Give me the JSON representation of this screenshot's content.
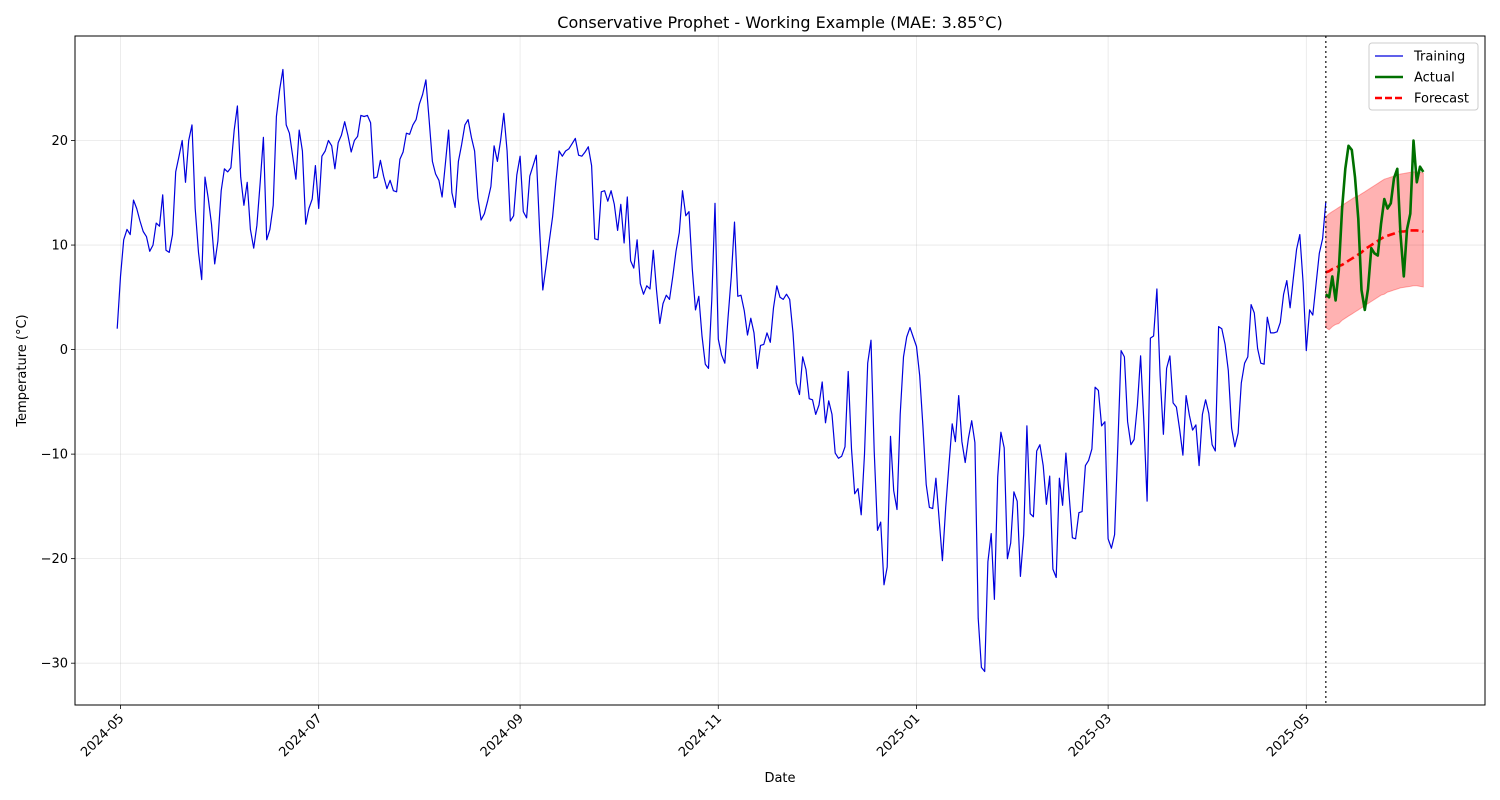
{
  "chart_data": {
    "type": "line",
    "title": "Conservative Prophet - Working Example (MAE: 3.85°C)",
    "xlabel": "Date",
    "ylabel": "Temperature (°C)",
    "ylim": [
      -34,
      30
    ],
    "y_ticks": [
      -30,
      -20,
      -10,
      0,
      10,
      20
    ],
    "y_tick_labels": [
      "−30",
      "−20",
      "−10",
      "0",
      "10",
      "20"
    ],
    "x_domain_days": [
      -14,
      420
    ],
    "x_ticks": [
      {
        "label": "2024-05",
        "day": 0
      },
      {
        "label": "2024-07",
        "day": 61
      },
      {
        "label": "2024-09",
        "day": 123
      },
      {
        "label": "2024-11",
        "day": 184
      },
      {
        "label": "2025-01",
        "day": 245
      },
      {
        "label": "2025-03",
        "day": 304
      },
      {
        "label": "2025-05",
        "day": 365
      }
    ],
    "grid": true,
    "legend_position": "top-right",
    "forecast_start_day": 371,
    "series": [
      {
        "name": "Training",
        "color": "#0000dd",
        "style": "solid",
        "x_start_day": -1,
        "values": [
          2,
          7,
          10.5,
          11.5,
          11,
          14.3,
          13.5,
          12.3,
          11.3,
          10.8,
          9.4,
          10,
          12.1,
          11.8,
          14.8,
          9.5,
          9.3,
          11,
          17,
          18.5,
          20,
          16,
          20,
          21.5,
          13.5,
          9.3,
          6.7,
          16.5,
          14.5,
          12,
          8.2,
          10.4,
          15.2,
          17.3,
          17,
          17.4,
          21,
          23.3,
          16.5,
          13.8,
          16,
          11.5,
          9.7,
          11.9,
          16,
          20.3,
          10.5,
          11.5,
          13.8,
          22.3,
          24.9,
          26.8,
          21.5,
          20.7,
          18.5,
          16.3,
          21,
          19,
          12,
          13.5,
          14.4,
          17.6,
          13.5,
          18.5,
          19,
          20,
          19.5,
          17.3,
          19.8,
          20.5,
          21.8,
          20.5,
          18.9,
          20,
          20.4,
          22.4,
          22.3,
          22.4,
          21.7,
          16.4,
          16.5,
          18.1,
          16.6,
          15.4,
          16.2,
          15.2,
          15.1,
          18.2,
          18.9,
          20.7,
          20.6,
          21.5,
          22,
          23.5,
          24.4,
          25.8,
          22,
          18,
          16.8,
          16.2,
          14.6,
          17.8,
          21,
          15,
          13.6,
          18,
          19.6,
          21.5,
          22,
          20.3,
          19,
          14.5,
          12.4,
          13,
          14.2,
          15.6,
          19.5,
          18,
          20,
          22.6,
          19,
          12.3,
          12.8,
          16.7,
          18.5,
          13.2,
          12.6,
          16.6,
          17.6,
          18.6,
          11.5,
          5.7,
          8,
          10.4,
          12.7,
          16,
          19,
          18.5,
          19,
          19.2,
          19.7,
          20.2,
          18.6,
          18.5,
          18.9,
          19.4,
          17.6,
          10.6,
          10.5,
          15.1,
          15.2,
          14.2,
          15.2,
          13.9,
          11.4,
          13.9,
          10.2,
          14.6,
          8.5,
          7.8,
          10.5,
          6.3,
          5.3,
          6.1,
          5.8,
          9.5,
          5.7,
          2.5,
          4.4,
          5.2,
          4.8,
          7,
          9.4,
          11.2,
          15.2,
          12.8,
          13.2,
          7.7,
          3.8,
          5.1,
          1.3,
          -1.4,
          -1.8,
          4.8,
          14,
          1,
          -0.5,
          -1.3,
          3,
          7,
          12.2,
          5.1,
          5.2,
          3.7,
          1.4,
          3,
          1.6,
          -1.8,
          0.4,
          0.5,
          1.6,
          0.7,
          4,
          6.1,
          5,
          4.8,
          5.3,
          4.8,
          1.6,
          -3.2,
          -4.3,
          -0.7,
          -1.9,
          -4.7,
          -4.8,
          -6.2,
          -5.3,
          -3.1,
          -7,
          -4.9,
          -6.2,
          -9.9,
          -10.4,
          -10.2,
          -9.3,
          -2.1,
          -9.5,
          -13.8,
          -13.3,
          -15.8,
          -10,
          -1.3,
          0.9,
          -9.7,
          -17.3,
          -16.5,
          -22.5,
          -20.8,
          -8.3,
          -13.5,
          -15.3,
          -6.2,
          -0.7,
          1.2,
          2.1,
          1.2,
          0.3,
          -2.5,
          -7.3,
          -12.9,
          -15.1,
          -15.2,
          -12.3,
          -16.3,
          -20.2,
          -15.1,
          -11.1,
          -7.1,
          -8.8,
          -4.4,
          -8.8,
          -10.8,
          -8.5,
          -6.8,
          -8.9,
          -25.7,
          -30.4,
          -30.8,
          -20.3,
          -17.6,
          -23.9,
          -12.2,
          -7.9,
          -9.4,
          -20,
          -18.5,
          -13.6,
          -14.5,
          -21.7,
          -17.7,
          -7.3,
          -15.7,
          -16,
          -9.7,
          -9.1,
          -11.1,
          -14.8,
          -12.1,
          -21,
          -21.8,
          -12.3,
          -14.9,
          -9.9,
          -13.9,
          -18,
          -18.1,
          -15.6,
          -15.5,
          -11.1,
          -10.6,
          -9.5,
          -3.6,
          -3.9,
          -7.3,
          -6.9,
          -18.1,
          -19,
          -17.7,
          -9,
          -0.1,
          -0.7,
          -6.9,
          -9.1,
          -8.6,
          -5.3,
          -0.6,
          -7,
          -14.5,
          1.1,
          1.3,
          5.8,
          -2.5,
          -8.1,
          -1.8,
          -0.6,
          -5.1,
          -5.5,
          -7.6,
          -10.1,
          -4.4,
          -6.3,
          -7.7,
          -7.2,
          -11.1,
          -6.2,
          -4.8,
          -6.1,
          -9.1,
          -9.7,
          2.2,
          2,
          0.5,
          -2,
          -7.5,
          -9.3,
          -8,
          -3.2,
          -1.3,
          -0.7,
          4.3,
          3.5,
          0.1,
          -1.3,
          -1.4,
          3.1,
          1.6,
          1.6,
          1.7,
          2.6,
          5.3,
          6.6,
          4,
          6.8,
          9.6,
          11,
          6.4,
          -0.1,
          3.8,
          3.3,
          6.3,
          9.2,
          10.6,
          14.1
        ]
      },
      {
        "name": "Actual",
        "color": "#007000",
        "style": "solid",
        "x_start_day": 371,
        "values": [
          5.3,
          5,
          7,
          4.7,
          7.6,
          13.5,
          17.3,
          19.5,
          19.1,
          16.5,
          12.5,
          5.7,
          3.8,
          5.8,
          9.7,
          9.2,
          9,
          12,
          14.4,
          13.5,
          14,
          16.4,
          17.3,
          11,
          7,
          11.5,
          13,
          20,
          16,
          17.5,
          17
        ]
      },
      {
        "name": "Forecast",
        "color": "#ff0000",
        "style": "dashed",
        "x_start_day": 371,
        "values": [
          7.4,
          7.5,
          7.7,
          7.8,
          8,
          8.1,
          8.3,
          8.5,
          8.7,
          8.9,
          9.1,
          9.3,
          9.6,
          9.8,
          10,
          10.2,
          10.4,
          10.6,
          10.8,
          10.9,
          11,
          11.1,
          11.2,
          11.3,
          11.3,
          11.35,
          11.4,
          11.4,
          11.4,
          11.35,
          11.3
        ],
        "lower": [
          2.1,
          1.9,
          2.2,
          2.4,
          2.5,
          2.8,
          3,
          3.2,
          3.4,
          3.6,
          3.8,
          4,
          4.2,
          4.4,
          4.6,
          4.8,
          5,
          5.2,
          5.3,
          5.5,
          5.6,
          5.7,
          5.8,
          5.9,
          5.95,
          6,
          6.05,
          6.1,
          6.1,
          6.05,
          6
        ],
        "upper": [
          12.7,
          13,
          13.2,
          13.4,
          13.6,
          13.8,
          14,
          14.2,
          14.4,
          14.6,
          14.7,
          14.9,
          15.1,
          15.3,
          15.5,
          15.7,
          15.9,
          16.1,
          16.3,
          16.4,
          16.5,
          16.6,
          16.7,
          16.8,
          16.85,
          16.9,
          16.95,
          17,
          17,
          16.95,
          16.9
        ]
      }
    ],
    "band_color": "#ff0000"
  }
}
